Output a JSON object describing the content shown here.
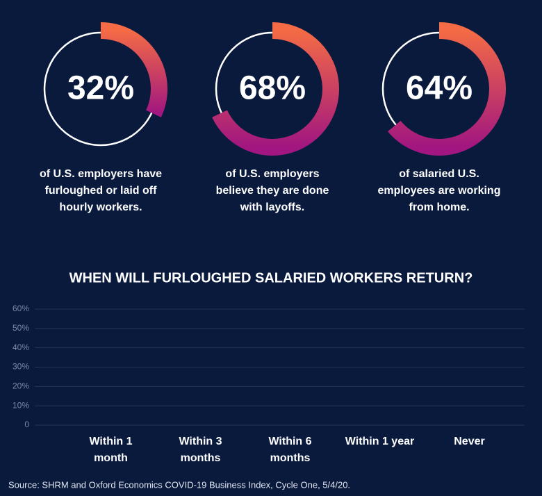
{
  "chart_data": [
    {
      "type": "donut",
      "values": [
        32
      ],
      "value_labels": [
        "32%"
      ],
      "caption": [
        "of U.S. employers have",
        "furloughed or laid off",
        "hourly workers."
      ]
    },
    {
      "type": "donut",
      "values": [
        68
      ],
      "value_labels": [
        "68%"
      ],
      "caption": [
        "of U.S. employers",
        "believe they are done",
        "with layoffs."
      ]
    },
    {
      "type": "donut",
      "values": [
        64
      ],
      "value_labels": [
        "64%"
      ],
      "caption": [
        "of salaried U.S.",
        "employees are working",
        "from home."
      ]
    },
    {
      "type": "bar",
      "title": "WHEN WILL FURLOUGHED SALARIED WORKERS RETURN?",
      "categories": [
        "Within 1 month",
        "Within 3 months",
        "Within 6 months",
        "Within 1 year",
        "Never"
      ],
      "ylim": [
        0,
        60
      ],
      "yticks": [
        0,
        {
          "value": 10,
          "label": "10%"
        },
        {
          "value": 20,
          "label": "20%"
        },
        {
          "value": 30,
          "label": "30%"
        },
        {
          "value": 40,
          "label": "40%"
        },
        {
          "value": 50,
          "label": "50%"
        },
        {
          "value": 60,
          "label": "60%"
        }
      ],
      "grid": true
    }
  ],
  "source": "Source: SHRM and Oxford Economics COVID-19 Business Index, Cycle One, 5/4/20."
}
